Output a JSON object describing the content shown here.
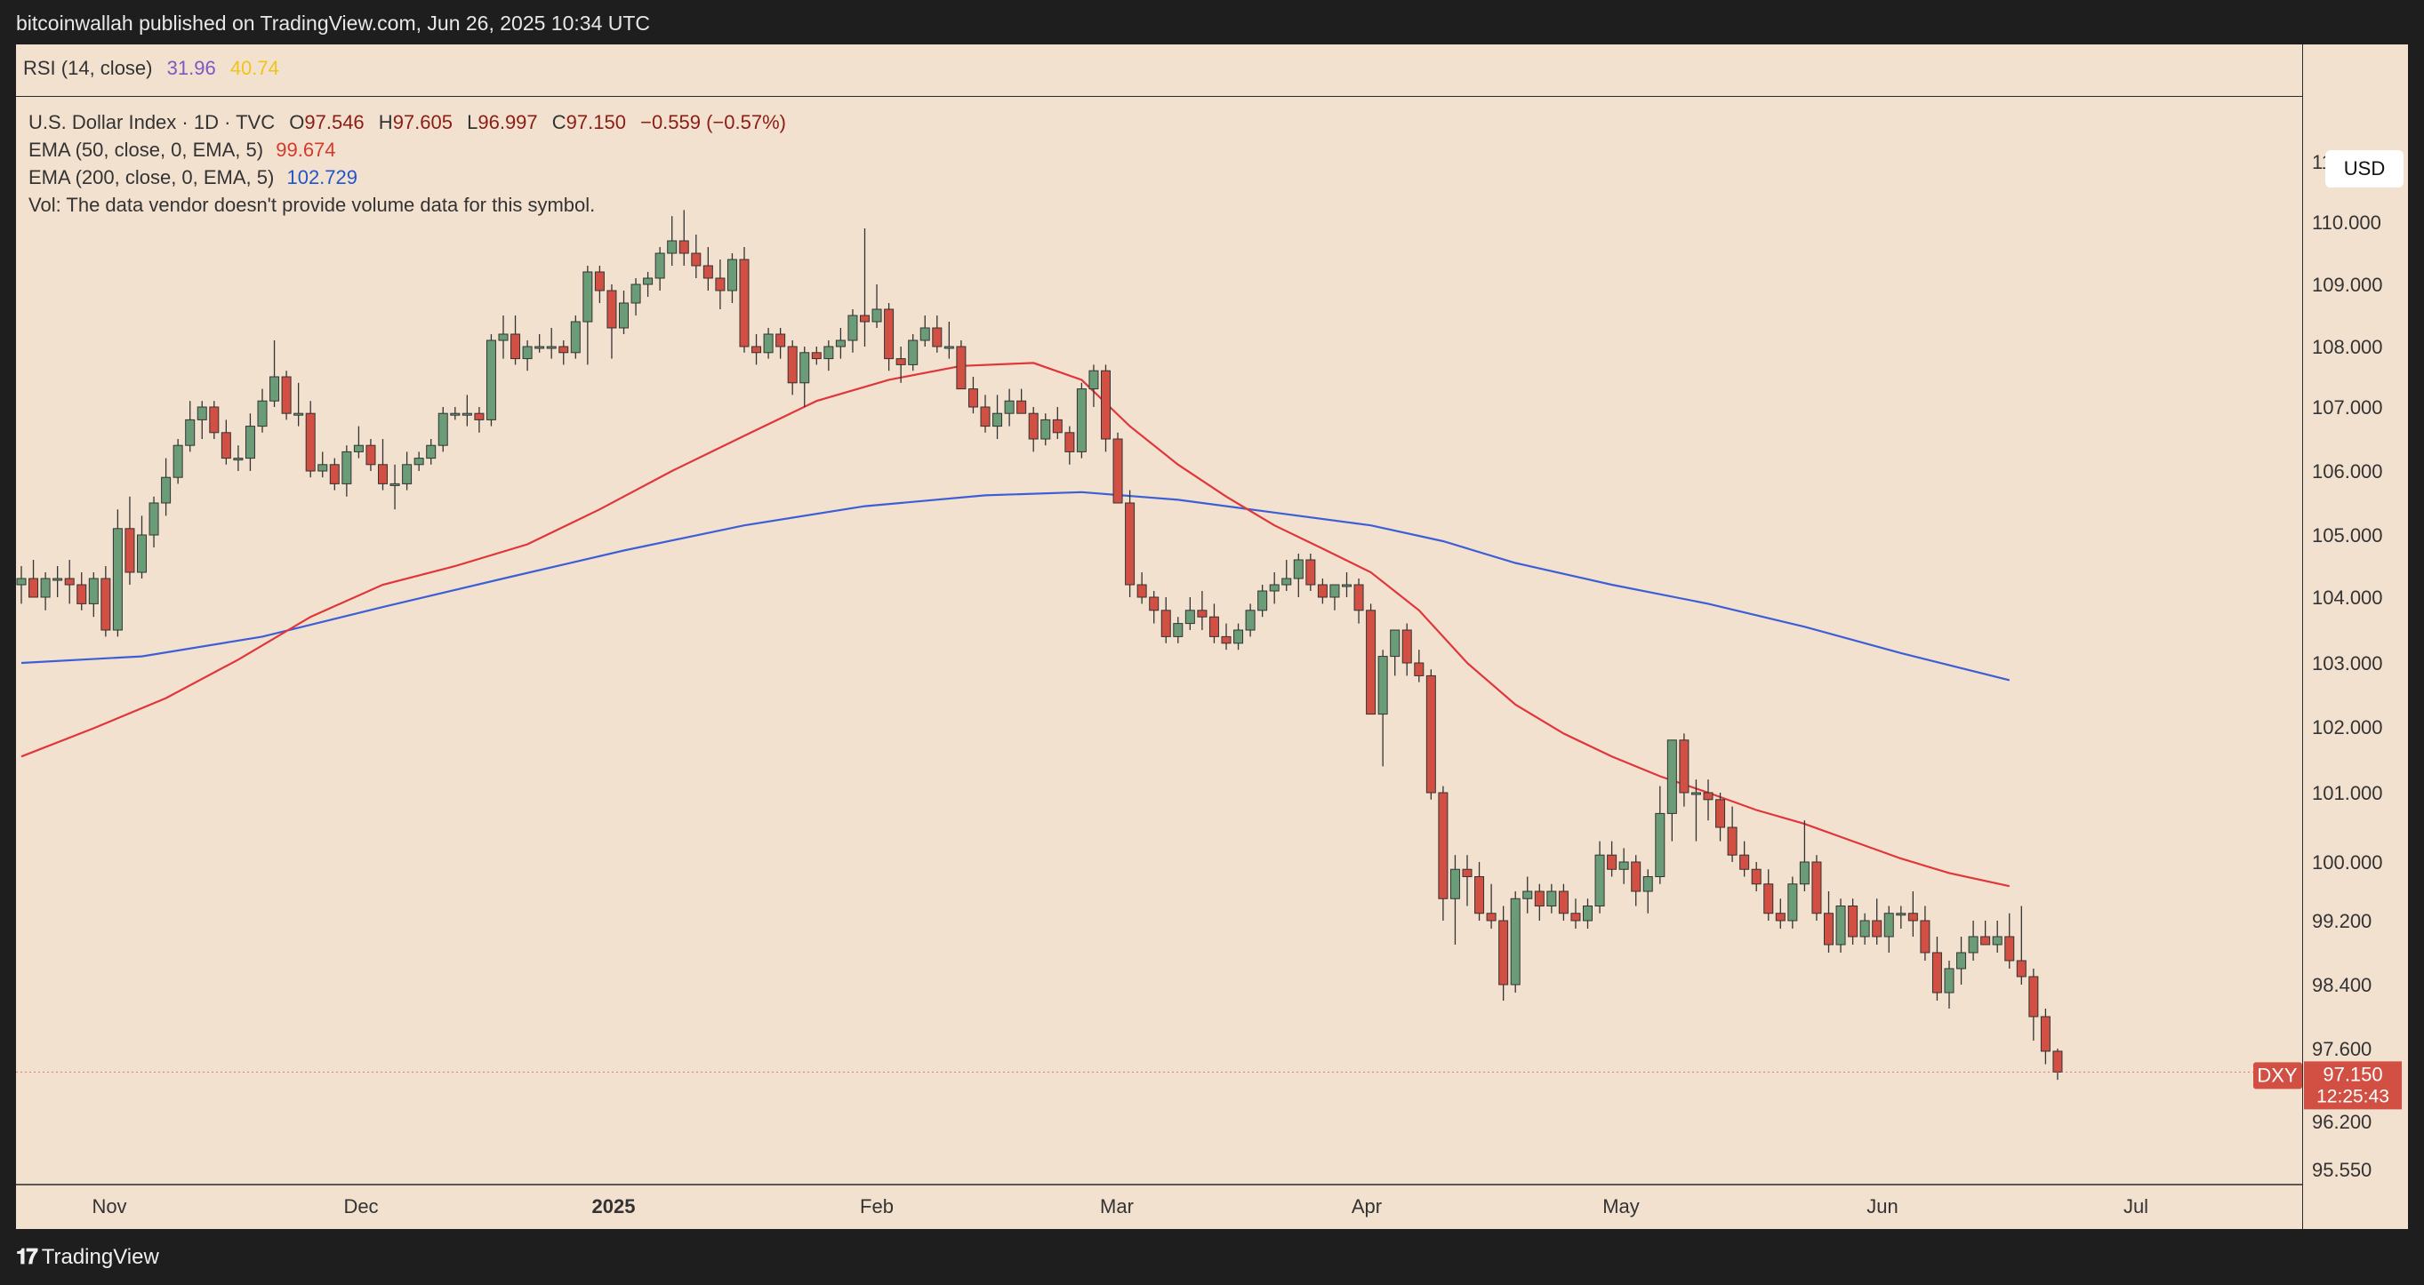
{
  "header": {
    "published": "bitcoinwallah published on TradingView.com, Jun 26, 2025 10:34 UTC"
  },
  "rsi": {
    "label": "RSI (14, close)",
    "value1": "31.96",
    "value2": "40.74"
  },
  "legend": {
    "symbol": "U.S. Dollar Index · 1D · TVC",
    "open_label": "O",
    "open": "97.546",
    "high_label": "H",
    "high": "97.605",
    "low_label": "L",
    "low": "96.997",
    "close_label": "C",
    "close": "97.150",
    "change": "−0.559 (−0.57%)",
    "ema50_label": "EMA (50, close, 0, EMA, 5)",
    "ema50_value": "99.674",
    "ema200_label": "EMA (200, close, 0, EMA, 5)",
    "ema200_value": "102.729",
    "vol_note": "Vol: The data vendor doesn't provide volume data for this symbol."
  },
  "currency": "USD",
  "price_tag": {
    "symbol": "DXY",
    "price": "97.150",
    "countdown": "12:25:43"
  },
  "footer": {
    "brand": "TradingView"
  },
  "colors": {
    "up": "#6a9c78",
    "down": "#d14f43",
    "ema50": "#e0353b",
    "ema200": "#3c5fd6",
    "background": "#f3e1d0"
  },
  "chart_data": {
    "type": "candlestick",
    "title": "U.S. Dollar Index · 1D · TVC",
    "y_ticks": [
      "111.000",
      "110.000",
      "109.000",
      "108.000",
      "107.000",
      "106.000",
      "105.000",
      "104.000",
      "103.000",
      "102.000",
      "101.000",
      "100.000",
      "99.200",
      "98.400",
      "97.600",
      "96.200",
      "95.550"
    ],
    "x_ticks": [
      "Nov",
      "Dec",
      "2025",
      "Feb",
      "Mar",
      "Apr",
      "May",
      "Jun",
      "Jul"
    ],
    "last_price": 97.15,
    "candles": [
      [
        104.2,
        104.5,
        103.9,
        104.3
      ],
      [
        104.3,
        104.6,
        104.0,
        104.0
      ],
      [
        104.0,
        104.4,
        103.8,
        104.3
      ],
      [
        104.3,
        104.5,
        104.0,
        104.3
      ],
      [
        104.3,
        104.6,
        103.9,
        104.2
      ],
      [
        104.2,
        104.4,
        103.8,
        103.9
      ],
      [
        103.9,
        104.4,
        103.7,
        104.3
      ],
      [
        104.3,
        104.5,
        103.4,
        103.5
      ],
      [
        103.5,
        105.4,
        103.4,
        105.1
      ],
      [
        105.1,
        105.6,
        104.2,
        104.4
      ],
      [
        104.4,
        105.3,
        104.3,
        105.0
      ],
      [
        105.0,
        105.6,
        104.8,
        105.5
      ],
      [
        105.5,
        106.2,
        105.3,
        105.9
      ],
      [
        105.9,
        106.5,
        105.8,
        106.4
      ],
      [
        106.4,
        107.1,
        106.3,
        106.8
      ],
      [
        106.8,
        107.1,
        106.5,
        107.0
      ],
      [
        107.0,
        107.1,
        106.5,
        106.6
      ],
      [
        106.6,
        106.8,
        106.1,
        106.2
      ],
      [
        106.2,
        106.4,
        106.0,
        106.2
      ],
      [
        106.2,
        106.9,
        106.0,
        106.7
      ],
      [
        106.7,
        107.3,
        106.6,
        107.1
      ],
      [
        107.1,
        108.1,
        107.0,
        107.5
      ],
      [
        107.5,
        107.6,
        106.8,
        106.9
      ],
      [
        106.9,
        107.4,
        106.7,
        106.9
      ],
      [
        106.9,
        107.1,
        105.9,
        106.0
      ],
      [
        106.0,
        106.3,
        105.9,
        106.1
      ],
      [
        106.1,
        106.2,
        105.7,
        105.8
      ],
      [
        105.8,
        106.4,
        105.6,
        106.3
      ],
      [
        106.3,
        106.7,
        106.2,
        106.4
      ],
      [
        106.4,
        106.5,
        106.0,
        106.1
      ],
      [
        106.1,
        106.5,
        105.7,
        105.8
      ],
      [
        105.8,
        106.1,
        105.4,
        105.8
      ],
      [
        105.8,
        106.3,
        105.7,
        106.1
      ],
      [
        106.1,
        106.3,
        106.0,
        106.2
      ],
      [
        106.2,
        106.5,
        106.1,
        106.4
      ],
      [
        106.4,
        107.0,
        106.3,
        106.9
      ],
      [
        106.9,
        107.0,
        106.8,
        106.9
      ],
      [
        106.9,
        107.2,
        106.7,
        106.9
      ],
      [
        106.9,
        107.0,
        106.6,
        106.8
      ],
      [
        106.8,
        108.2,
        106.7,
        108.1
      ],
      [
        108.1,
        108.5,
        107.8,
        108.2
      ],
      [
        108.2,
        108.5,
        107.7,
        107.8
      ],
      [
        107.8,
        108.1,
        107.6,
        108.0
      ],
      [
        108.0,
        108.2,
        107.9,
        108.0
      ],
      [
        108.0,
        108.3,
        107.8,
        108.0
      ],
      [
        108.0,
        108.1,
        107.7,
        107.9
      ],
      [
        107.9,
        108.5,
        107.8,
        108.4
      ],
      [
        108.4,
        109.3,
        107.7,
        109.2
      ],
      [
        109.2,
        109.3,
        108.7,
        108.9
      ],
      [
        108.9,
        109.0,
        107.8,
        108.3
      ],
      [
        108.3,
        108.9,
        108.2,
        108.7
      ],
      [
        108.7,
        109.1,
        108.5,
        109.0
      ],
      [
        109.0,
        109.2,
        108.8,
        109.1
      ],
      [
        109.1,
        109.6,
        108.9,
        109.5
      ],
      [
        109.5,
        110.1,
        109.3,
        109.7
      ],
      [
        109.7,
        110.2,
        109.3,
        109.5
      ],
      [
        109.5,
        109.8,
        109.1,
        109.3
      ],
      [
        109.3,
        109.6,
        108.9,
        109.1
      ],
      [
        109.1,
        109.4,
        108.6,
        108.9
      ],
      [
        108.9,
        109.5,
        108.7,
        109.4
      ],
      [
        109.4,
        109.6,
        107.9,
        108.0
      ],
      [
        108.0,
        108.2,
        107.7,
        107.9
      ],
      [
        107.9,
        108.3,
        107.8,
        108.2
      ],
      [
        108.2,
        108.3,
        107.8,
        108.0
      ],
      [
        108.0,
        108.1,
        107.2,
        107.4
      ],
      [
        107.4,
        108.0,
        107.0,
        107.9
      ],
      [
        107.9,
        108.0,
        107.7,
        107.8
      ],
      [
        107.8,
        108.1,
        107.6,
        108.0
      ],
      [
        108.0,
        108.3,
        107.8,
        108.1
      ],
      [
        108.1,
        108.6,
        107.9,
        108.5
      ],
      [
        108.5,
        109.9,
        108.0,
        108.4
      ],
      [
        108.4,
        109.0,
        108.3,
        108.6
      ],
      [
        108.6,
        108.7,
        107.6,
        107.8
      ],
      [
        107.8,
        108.0,
        107.4,
        107.7
      ],
      [
        107.7,
        108.2,
        107.6,
        108.1
      ],
      [
        108.1,
        108.5,
        108.0,
        108.3
      ],
      [
        108.3,
        108.5,
        107.9,
        108.0
      ],
      [
        108.0,
        108.4,
        107.8,
        108.0
      ],
      [
        108.0,
        108.1,
        107.3,
        107.3
      ],
      [
        107.3,
        107.5,
        106.9,
        107.0
      ],
      [
        107.0,
        107.2,
        106.6,
        106.7
      ],
      [
        106.7,
        107.2,
        106.5,
        106.9
      ],
      [
        106.9,
        107.3,
        106.7,
        107.1
      ],
      [
        107.1,
        107.3,
        106.9,
        106.9
      ],
      [
        106.9,
        107.0,
        106.3,
        106.5
      ],
      [
        106.5,
        106.9,
        106.4,
        106.8
      ],
      [
        106.8,
        107.0,
        106.5,
        106.6
      ],
      [
        106.6,
        106.7,
        106.1,
        106.3
      ],
      [
        106.3,
        107.4,
        106.2,
        107.3
      ],
      [
        107.3,
        107.7,
        107.0,
        107.6
      ],
      [
        107.6,
        107.7,
        106.3,
        106.5
      ],
      [
        106.5,
        106.6,
        105.5,
        105.5
      ],
      [
        105.5,
        105.7,
        104.0,
        104.2
      ],
      [
        104.2,
        104.4,
        103.9,
        104.0
      ],
      [
        104.0,
        104.1,
        103.6,
        103.8
      ],
      [
        103.8,
        104.0,
        103.3,
        103.4
      ],
      [
        103.4,
        103.7,
        103.3,
        103.6
      ],
      [
        103.6,
        104.0,
        103.5,
        103.8
      ],
      [
        103.8,
        104.1,
        103.5,
        103.7
      ],
      [
        103.7,
        103.9,
        103.3,
        103.4
      ],
      [
        103.4,
        103.6,
        103.2,
        103.3
      ],
      [
        103.3,
        103.6,
        103.2,
        103.5
      ],
      [
        103.5,
        103.9,
        103.4,
        103.8
      ],
      [
        103.8,
        104.2,
        103.7,
        104.1
      ],
      [
        104.1,
        104.4,
        103.9,
        104.2
      ],
      [
        104.2,
        104.6,
        104.1,
        104.3
      ],
      [
        104.3,
        104.7,
        104.0,
        104.6
      ],
      [
        104.6,
        104.7,
        104.1,
        104.2
      ],
      [
        104.2,
        104.3,
        103.9,
        104.0
      ],
      [
        104.0,
        104.2,
        103.8,
        104.2
      ],
      [
        104.2,
        104.4,
        104.0,
        104.2
      ],
      [
        104.2,
        104.3,
        103.6,
        103.8
      ],
      [
        103.8,
        103.9,
        102.2,
        102.2
      ],
      [
        102.2,
        103.2,
        101.4,
        103.1
      ],
      [
        103.1,
        103.5,
        102.8,
        103.5
      ],
      [
        103.5,
        103.6,
        102.8,
        103.0
      ],
      [
        103.0,
        103.2,
        102.7,
        102.8
      ],
      [
        102.8,
        102.9,
        100.9,
        101.0
      ],
      [
        101.0,
        101.1,
        99.2,
        99.5
      ],
      [
        99.5,
        100.1,
        98.9,
        99.9
      ],
      [
        99.9,
        100.1,
        99.4,
        99.8
      ],
      [
        99.8,
        100.0,
        99.2,
        99.3
      ],
      [
        99.3,
        99.7,
        99.1,
        99.2
      ],
      [
        99.2,
        99.4,
        98.2,
        98.4
      ],
      [
        98.4,
        99.6,
        98.3,
        99.5
      ],
      [
        99.5,
        99.8,
        99.3,
        99.6
      ],
      [
        99.6,
        99.7,
        99.2,
        99.4
      ],
      [
        99.4,
        99.7,
        99.3,
        99.6
      ],
      [
        99.6,
        99.7,
        99.2,
        99.3
      ],
      [
        99.3,
        99.5,
        99.1,
        99.2
      ],
      [
        99.2,
        99.5,
        99.1,
        99.4
      ],
      [
        99.4,
        100.3,
        99.3,
        100.1
      ],
      [
        100.1,
        100.3,
        99.8,
        99.9
      ],
      [
        99.9,
        100.2,
        99.7,
        100.0
      ],
      [
        100.0,
        100.1,
        99.4,
        99.6
      ],
      [
        99.6,
        99.9,
        99.3,
        99.8
      ],
      [
        99.8,
        101.1,
        99.7,
        100.7
      ],
      [
        100.7,
        101.8,
        100.3,
        101.8
      ],
      [
        101.8,
        101.9,
        100.8,
        101.0
      ],
      [
        101.0,
        101.2,
        100.3,
        101.0
      ],
      [
        101.0,
        101.2,
        100.6,
        100.9
      ],
      [
        100.9,
        101.0,
        100.3,
        100.5
      ],
      [
        100.5,
        100.8,
        100.0,
        100.1
      ],
      [
        100.1,
        100.3,
        99.8,
        99.9
      ],
      [
        99.9,
        100.0,
        99.6,
        99.7
      ],
      [
        99.7,
        99.9,
        99.2,
        99.3
      ],
      [
        99.3,
        99.5,
        99.1,
        99.2
      ],
      [
        99.2,
        99.8,
        99.1,
        99.7
      ],
      [
        99.7,
        100.6,
        99.6,
        100.0
      ],
      [
        100.0,
        100.1,
        99.2,
        99.3
      ],
      [
        99.3,
        99.6,
        98.8,
        98.9
      ],
      [
        98.9,
        99.5,
        98.8,
        99.4
      ],
      [
        99.4,
        99.5,
        98.9,
        99.0
      ],
      [
        99.0,
        99.3,
        98.9,
        99.2
      ],
      [
        99.2,
        99.5,
        98.9,
        99.0
      ],
      [
        99.0,
        99.4,
        98.8,
        99.3
      ],
      [
        99.3,
        99.4,
        99.1,
        99.3
      ],
      [
        99.3,
        99.6,
        99.0,
        99.2
      ],
      [
        99.2,
        99.4,
        98.7,
        98.8
      ],
      [
        98.8,
        99.0,
        98.2,
        98.3
      ],
      [
        98.3,
        98.7,
        98.1,
        98.6
      ],
      [
        98.6,
        99.0,
        98.4,
        98.8
      ],
      [
        98.8,
        99.2,
        98.7,
        99.0
      ],
      [
        99.0,
        99.2,
        98.9,
        98.9
      ],
      [
        98.9,
        99.2,
        98.8,
        99.0
      ],
      [
        99.0,
        99.3,
        98.6,
        98.7
      ],
      [
        98.7,
        99.4,
        98.4,
        98.5
      ],
      [
        98.5,
        98.6,
        97.7,
        98.0
      ],
      [
        98.0,
        98.1,
        97.3,
        97.55
      ],
      [
        97.55,
        97.6,
        97.0,
        97.15
      ]
    ],
    "ema50": [
      [
        0,
        101.55
      ],
      [
        6,
        101.98
      ],
      [
        12,
        102.45
      ],
      [
        18,
        103.05
      ],
      [
        24,
        103.7
      ],
      [
        30,
        104.2
      ],
      [
        36,
        104.5
      ],
      [
        42,
        104.85
      ],
      [
        48,
        105.4
      ],
      [
        54,
        106.0
      ],
      [
        60,
        106.55
      ],
      [
        66,
        107.1
      ],
      [
        72,
        107.45
      ],
      [
        78,
        107.68
      ],
      [
        84,
        107.73
      ],
      [
        88,
        107.45
      ],
      [
        92,
        106.7
      ],
      [
        96,
        106.1
      ],
      [
        100,
        105.6
      ],
      [
        104,
        105.15
      ],
      [
        108,
        104.78
      ],
      [
        112,
        104.4
      ],
      [
        116,
        103.8
      ],
      [
        120,
        103.0
      ],
      [
        124,
        102.35
      ],
      [
        128,
        101.9
      ],
      [
        132,
        101.55
      ],
      [
        136,
        101.25
      ],
      [
        140,
        101.0
      ],
      [
        144,
        100.75
      ],
      [
        148,
        100.55
      ],
      [
        152,
        100.3
      ],
      [
        156,
        100.05
      ],
      [
        160,
        99.85
      ],
      [
        165,
        99.67
      ]
    ],
    "ema200": [
      [
        0,
        103.0
      ],
      [
        10,
        103.1
      ],
      [
        20,
        103.4
      ],
      [
        30,
        103.85
      ],
      [
        40,
        104.3
      ],
      [
        50,
        104.75
      ],
      [
        60,
        105.15
      ],
      [
        70,
        105.45
      ],
      [
        80,
        105.62
      ],
      [
        88,
        105.67
      ],
      [
        96,
        105.55
      ],
      [
        104,
        105.35
      ],
      [
        112,
        105.15
      ],
      [
        118,
        104.9
      ],
      [
        124,
        104.55
      ],
      [
        132,
        104.2
      ],
      [
        140,
        103.9
      ],
      [
        148,
        103.55
      ],
      [
        156,
        103.15
      ],
      [
        165,
        102.73
      ]
    ]
  }
}
